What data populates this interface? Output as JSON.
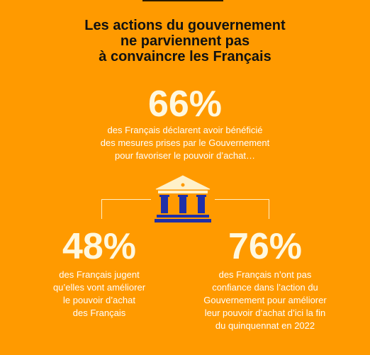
{
  "title": {
    "line1": "Les actions du gouvernement",
    "line2": "ne parviennent pas",
    "line3": "à convaincre les Français"
  },
  "main_stat": {
    "value": "66%",
    "line1": "des Français déclarent avoir bénéficié",
    "line2": "des mesures prises par le Gouvernement",
    "line3": "pour favoriser le pouvoir d’achat…"
  },
  "left_stat": {
    "value": "48%",
    "line1": "des Français jugent",
    "line2": "qu’elles vont améliorer",
    "line3": "le pouvoir d’achat",
    "line4": "des Français"
  },
  "right_stat": {
    "value": "76%",
    "line1": "des Français n’ont pas",
    "line2": "confiance dans l’action du",
    "line3": "Gouvernement pour améliorer",
    "line4": "leur pouvoir d’achat d’ici la fin",
    "line5": "du quinquennat en 2022"
  },
  "icons": {
    "center": "government-building-icon"
  },
  "colors": {
    "background": "#ff9a00",
    "title": "#111111",
    "stat_value": "#fff8e0",
    "body_text": "#ffffff",
    "connector": "#fff1c9",
    "building_columns": "#1f2fa8",
    "building_roof": "#fff1c9"
  }
}
